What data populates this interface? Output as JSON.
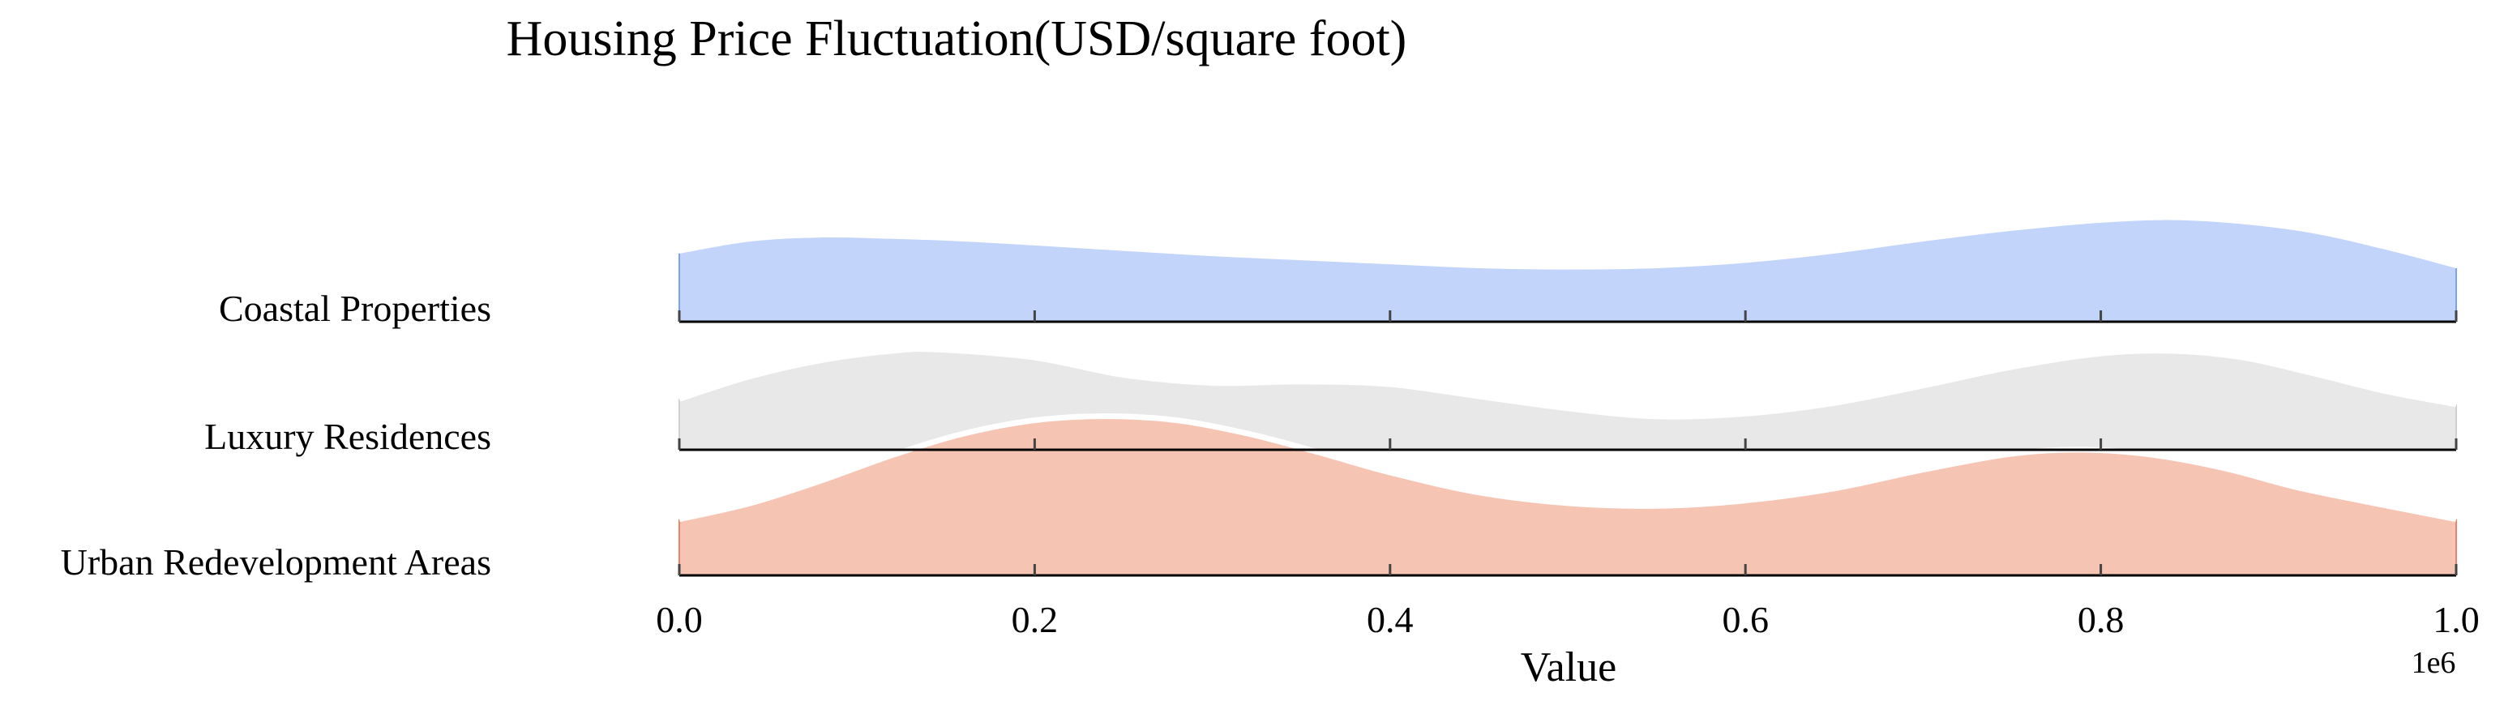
{
  "chart_data": {
    "type": "area",
    "title": "Housing Price Fluctuation(USD/square foot)",
    "xlabel": "Value",
    "x_offset_label": "1e6",
    "xlim": [
      0,
      1000000
    ],
    "x_ticks": [
      0,
      200000,
      400000,
      600000,
      800000,
      1000000
    ],
    "x_tick_labels": [
      "0.0",
      "0.2",
      "0.4",
      "0.6",
      "0.8",
      "1.0"
    ],
    "y_categories": [
      "Coastal Properties",
      "Luxury Residences",
      "Urban Redevelopment Areas"
    ],
    "style": "ridgeline",
    "grid": false,
    "series": [
      {
        "name": "Coastal Properties",
        "color": "#c3d4fb",
        "edge_color": "#7f9ef5",
        "x": [
          0,
          40000,
          80000,
          120000,
          160000,
          200000,
          250000,
          300000,
          350000,
          400000,
          450000,
          500000,
          550000,
          600000,
          650000,
          700000,
          750000,
          800000,
          840000,
          880000,
          920000,
          960000,
          1000000
        ],
        "density": [
          0.51,
          0.6,
          0.63,
          0.62,
          0.6,
          0.57,
          0.53,
          0.49,
          0.46,
          0.43,
          0.4,
          0.39,
          0.4,
          0.44,
          0.51,
          0.6,
          0.68,
          0.74,
          0.76,
          0.73,
          0.66,
          0.54,
          0.4
        ]
      },
      {
        "name": "Luxury Residences",
        "color": "#e8e8e8",
        "edge_color": "#cfcfcf",
        "x": [
          0,
          40000,
          80000,
          120000,
          145000,
          200000,
          250000,
          300000,
          350000,
          400000,
          450000,
          500000,
          550000,
          600000,
          650000,
          700000,
          750000,
          800000,
          840000,
          880000,
          920000,
          960000,
          1000000
        ],
        "density": [
          0.38,
          0.55,
          0.67,
          0.74,
          0.75,
          0.69,
          0.56,
          0.5,
          0.51,
          0.49,
          0.4,
          0.31,
          0.25,
          0.27,
          0.35,
          0.48,
          0.62,
          0.72,
          0.74,
          0.69,
          0.57,
          0.44,
          0.34
        ]
      },
      {
        "name": "Urban Redevelopment Areas",
        "color": "#f6c4b3",
        "edge_color": "#e8836a",
        "x": [
          0,
          40000,
          80000,
          120000,
          160000,
          200000,
          240000,
          280000,
          320000,
          360000,
          400000,
          450000,
          500000,
          550000,
          600000,
          650000,
          700000,
          750000,
          790000,
          830000,
          870000,
          910000,
          950000,
          1000000
        ],
        "density": [
          0.42,
          0.54,
          0.71,
          0.9,
          1.06,
          1.16,
          1.19,
          1.16,
          1.06,
          0.92,
          0.77,
          0.62,
          0.54,
          0.52,
          0.56,
          0.65,
          0.79,
          0.91,
          0.94,
          0.9,
          0.8,
          0.66,
          0.55,
          0.42
        ]
      }
    ]
  }
}
